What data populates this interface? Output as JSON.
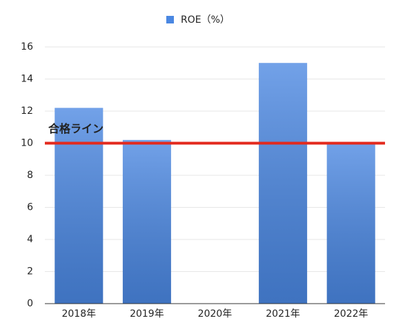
{
  "chart_data": {
    "type": "bar",
    "categories": [
      "2018年",
      "2019年",
      "2020年",
      "2021年",
      "2022年"
    ],
    "series": [
      {
        "name": "ROE（%）",
        "color": "#4a87e2",
        "values": [
          12.2,
          10.2,
          null,
          15,
          10
        ]
      }
    ],
    "ylim": [
      0,
      16
    ],
    "yticks": [
      0,
      2,
      4,
      6,
      8,
      10,
      12,
      14,
      16
    ],
    "grid": true,
    "legend": "top",
    "reference_line": {
      "value": 10,
      "label": "合格ライン",
      "color": "#e3291d"
    }
  }
}
